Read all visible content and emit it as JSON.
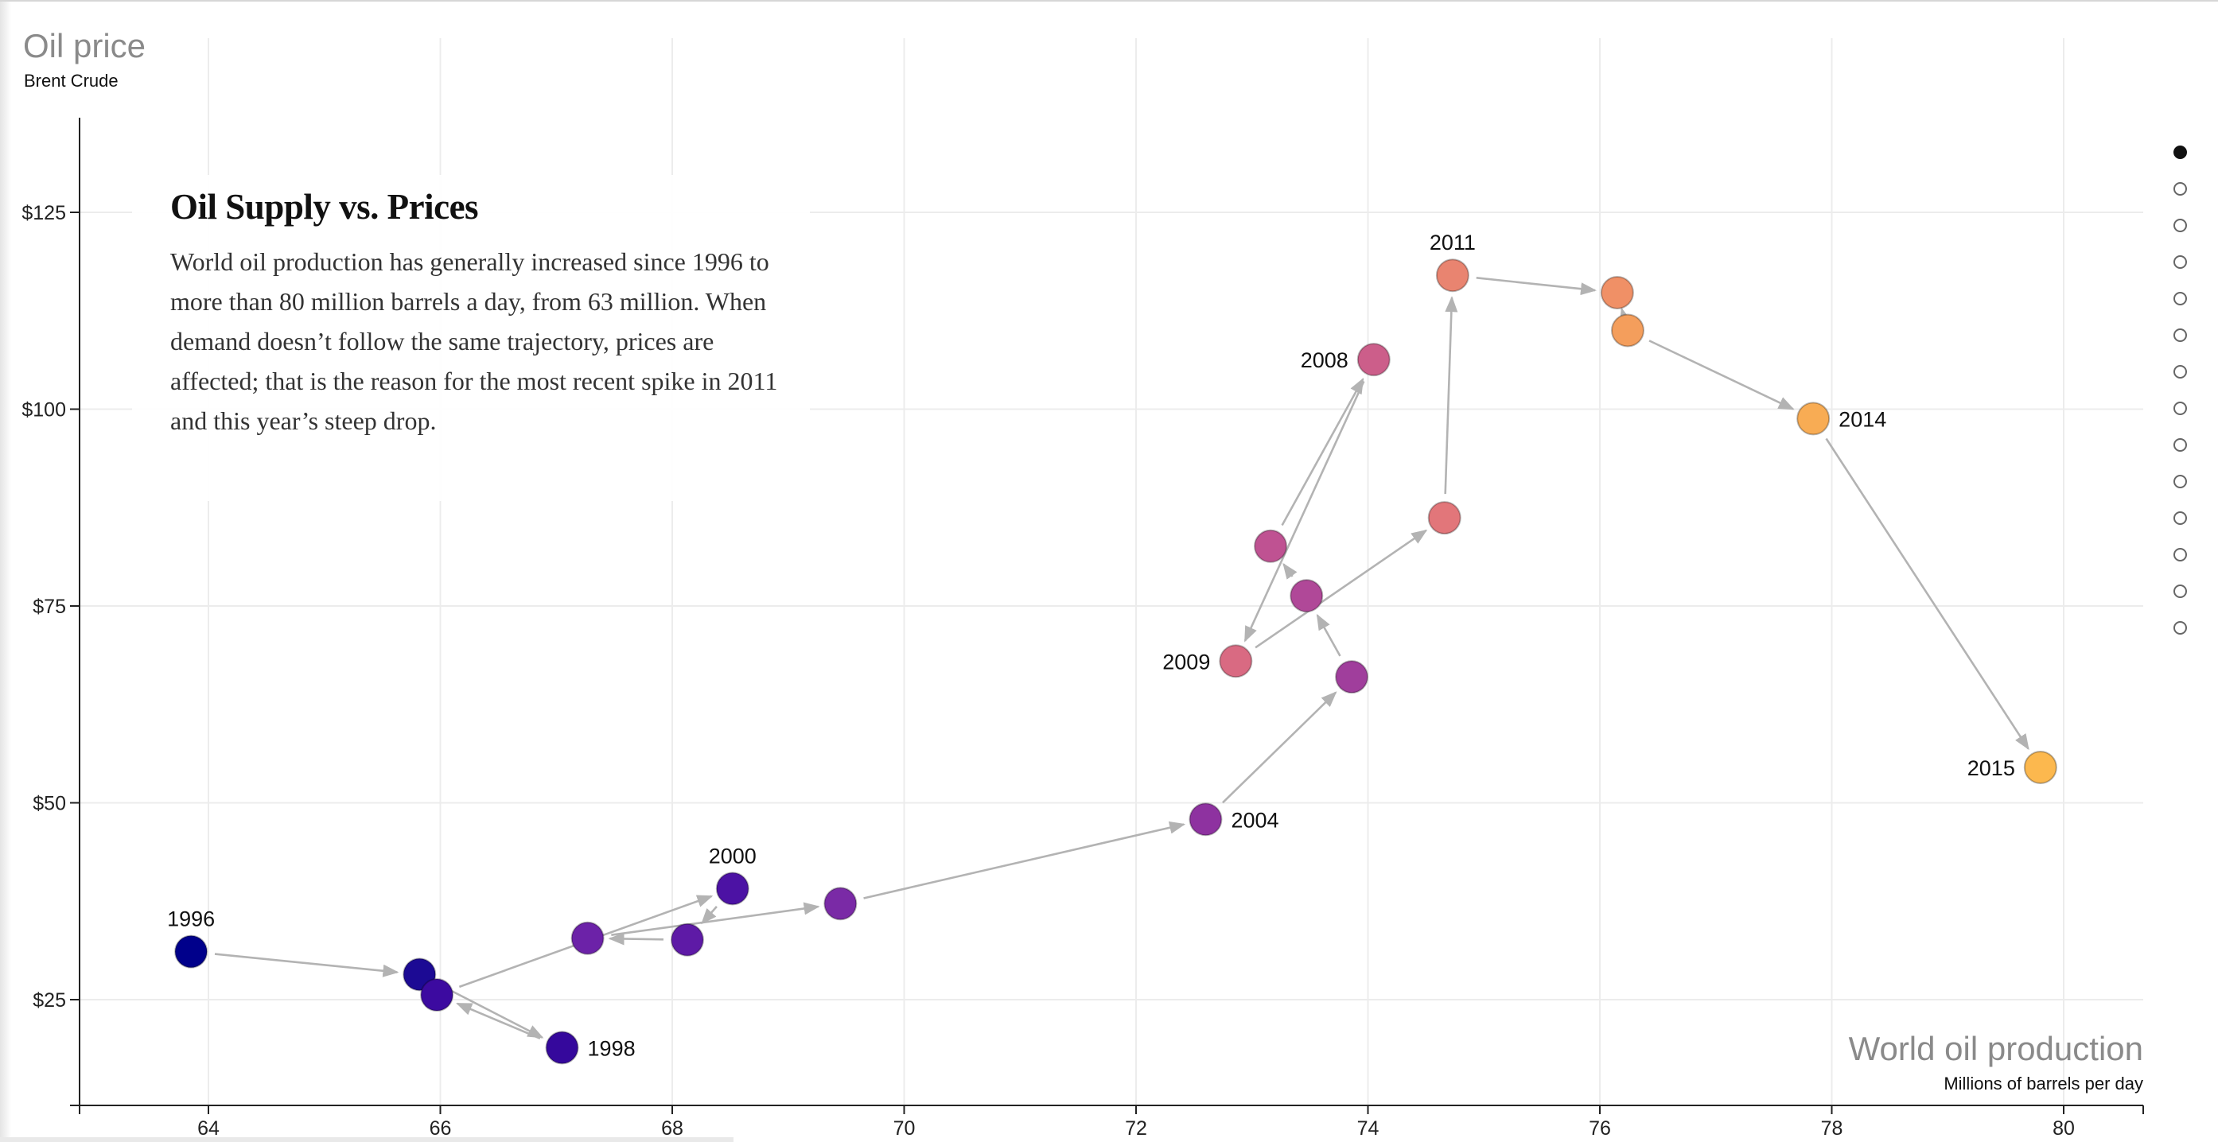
{
  "chart_data": {
    "type": "scatter",
    "title": "",
    "y_axis": {
      "title": "Oil price",
      "subtitle": "Brent Crude",
      "ticks": [
        "$25",
        "$50",
        "$75",
        "$100",
        "$125"
      ],
      "range": [
        13,
        138
      ]
    },
    "x_axis": {
      "title": "World oil production",
      "subtitle": "Millions of barrels per day",
      "ticks": [
        "64",
        "66",
        "68",
        "70",
        "72",
        "74",
        "76",
        "78",
        "80"
      ],
      "range": [
        62.9,
        80.35
      ]
    },
    "grid": true,
    "connected": true,
    "points": [
      {
        "year": "1996",
        "x": 63.85,
        "y": 31.1,
        "label": "1996",
        "label_pos": "above",
        "color": "#00008b"
      },
      {
        "year": "1997",
        "x": 65.82,
        "y": 28.2,
        "label": "",
        "color": "#1c0a94"
      },
      {
        "year": "1998",
        "x": 67.05,
        "y": 18.9,
        "label": "1998",
        "label_pos": "right",
        "color": "#35089c"
      },
      {
        "year": "1999",
        "x": 65.97,
        "y": 25.6,
        "label": "",
        "color": "#3c0aa0"
      },
      {
        "year": "2000",
        "x": 68.52,
        "y": 39.1,
        "label": "2000",
        "label_pos": "above",
        "color": "#4c12a4"
      },
      {
        "year": "2001",
        "x": 68.13,
        "y": 32.6,
        "label": "",
        "color": "#5e1aa6"
      },
      {
        "year": "2002",
        "x": 67.27,
        "y": 32.8,
        "label": "",
        "color": "#6c22a8"
      },
      {
        "year": "2003",
        "x": 69.45,
        "y": 37.2,
        "label": "",
        "color": "#7a2aa6"
      },
      {
        "year": "2004",
        "x": 72.6,
        "y": 47.9,
        "label": "2004",
        "label_pos": "right",
        "color": "#8e32a0"
      },
      {
        "year": "2005",
        "x": 73.86,
        "y": 66.0,
        "label": "",
        "color": "#a03e9c"
      },
      {
        "year": "2006",
        "x": 73.47,
        "y": 76.3,
        "label": "",
        "color": "#b04898"
      },
      {
        "year": "2007",
        "x": 73.16,
        "y": 82.6,
        "label": "",
        "color": "#bf5292"
      },
      {
        "year": "2008",
        "x": 74.05,
        "y": 106.3,
        "label": "2008",
        "label_pos": "left",
        "color": "#cc5e8a"
      },
      {
        "year": "2009",
        "x": 72.86,
        "y": 68.0,
        "label": "2009",
        "label_pos": "left",
        "color": "#d96a82"
      },
      {
        "year": "2010",
        "x": 74.66,
        "y": 86.2,
        "label": "",
        "color": "#e2767a"
      },
      {
        "year": "2011",
        "x": 74.73,
        "y": 117.0,
        "label": "2011",
        "label_pos": "above",
        "color": "#e98470"
      },
      {
        "year": "2012",
        "x": 76.15,
        "y": 114.8,
        "label": "",
        "color": "#f09066"
      },
      {
        "year": "2013",
        "x": 76.24,
        "y": 110.0,
        "label": "",
        "color": "#f49e5c"
      },
      {
        "year": "2014",
        "x": 77.84,
        "y": 98.8,
        "label": "2014",
        "label_pos": "right",
        "color": "#f8ac54"
      },
      {
        "year": "2015",
        "x": 79.8,
        "y": 54.5,
        "label": "2015",
        "label_pos": "left",
        "color": "#fcb84e"
      }
    ]
  },
  "info": {
    "title": "Oil Supply vs. Prices",
    "description": "World oil production has generally increased since 1996 to more than 80 million barrels a day, from 63 million. When demand doesn’t follow the same trajectory, prices are affected; that is the reason for the most recent spike in 2011 and this year’s steep drop."
  },
  "steps": {
    "count": 14,
    "active": 0
  }
}
